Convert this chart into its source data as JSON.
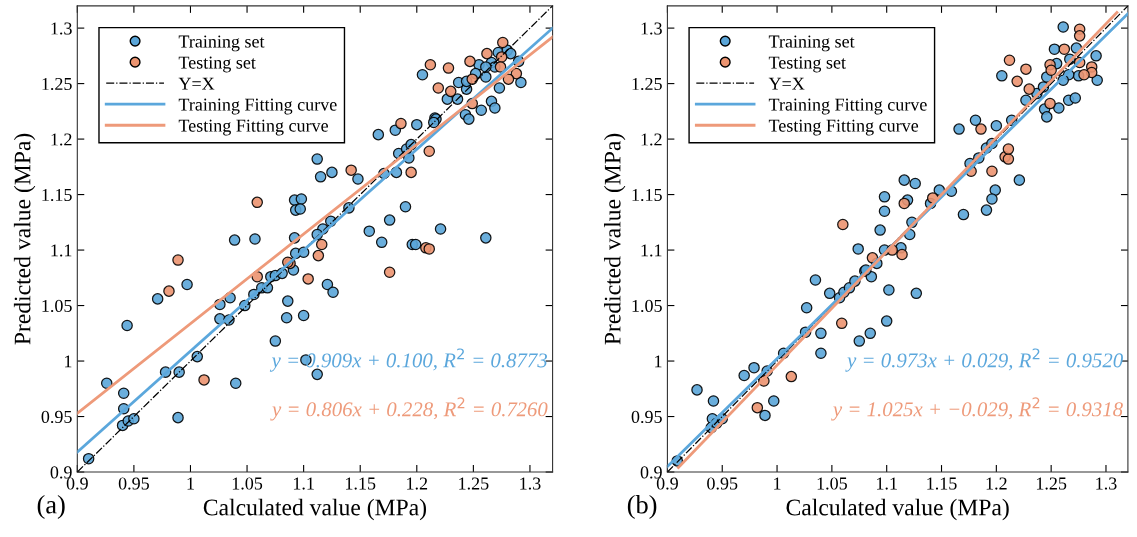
{
  "chart_data": [
    {
      "type": "scatter",
      "xlabel": "Calculated value (MPa)",
      "ylabel": "Predicted value (MPa)",
      "xlim": [
        0.9,
        1.32
      ],
      "ylim": [
        0.9,
        1.32
      ],
      "xticks": [
        0.9,
        0.95,
        1,
        1.05,
        1.1,
        1.15,
        1.2,
        1.25,
        1.3
      ],
      "yticks": [
        0.9,
        0.95,
        1,
        1.05,
        1.1,
        1.15,
        1.2,
        1.25,
        1.3
      ],
      "grid": false,
      "legend": "top left",
      "annotations": [
        "y = 0.909x + 0.100, R$^{2}$ = 0.8773",
        "y = 0.806x + 0.228, R$^{2}$ = 0.7260",
        "(a)"
      ],
      "series": [
        {
          "name": "Training set",
          "marker": "circle",
          "color": "#5aa5d8",
          "x": [
            0.91,
            0.926,
            0.941,
            0.941,
            0.94,
            0.945,
            0.95,
            0.944,
            0.971,
            0.997,
            0.978,
            0.99,
            0.989,
            1.006,
            1.04,
            1.026,
            1.026,
            1.035,
            1.034,
            1.048,
            1.056,
            1.063,
            1.068,
            1.071,
            1.075,
            1.081,
            1.091,
            1.075,
            1.086,
            1.085,
            1.1,
            1.102,
            1.112,
            1.121,
            1.126,
            1.039,
            1.057,
            1.092,
            1.093,
            1.092,
            1.093,
            1.112,
            1.115,
            1.125,
            1.148,
            1.098,
            1.097,
            1.14,
            1.124,
            1.117,
            1.112,
            1.1,
            1.158,
            1.169,
            1.176,
            1.19,
            1.196,
            1.199,
            1.221,
            1.261,
            1.166,
            1.181,
            1.2,
            1.216,
            1.217,
            1.215,
            1.205,
            1.184,
            1.191,
            1.195,
            1.193,
            1.182,
            1.171,
            1.227,
            1.236,
            1.237,
            1.244,
            1.244,
            1.255,
            1.252,
            1.261,
            1.266,
            1.272,
            1.28,
            1.283,
            1.269,
            1.29,
            1.292,
            1.273,
            1.243,
            1.246,
            1.257,
            1.266,
            1.269,
            1.261
          ],
          "values": [
            0.912,
            0.98,
            0.971,
            0.957,
            0.942,
            0.946,
            0.948,
            1.032,
            1.056,
            1.069,
            0.99,
            0.99,
            0.949,
            1.004,
            0.98,
            1.051,
            1.038,
            1.057,
            1.037,
            1.05,
            1.06,
            1.066,
            1.066,
            1.076,
            1.077,
            1.079,
            1.082,
            1.018,
            1.054,
            1.039,
            1.041,
            1.001,
            0.988,
            1.069,
            1.062,
            1.109,
            1.11,
            1.145,
            1.136,
            1.111,
            1.097,
            1.182,
            1.166,
            1.17,
            1.164,
            1.146,
            1.137,
            1.138,
            1.126,
            1.119,
            1.114,
            1.098,
            1.117,
            1.107,
            1.127,
            1.139,
            1.105,
            1.105,
            1.119,
            1.111,
            1.204,
            1.208,
            1.213,
            1.219,
            1.218,
            1.215,
            1.258,
            1.187,
            1.191,
            1.195,
            1.183,
            1.17,
            1.169,
            1.236,
            1.236,
            1.251,
            1.245,
            1.252,
            1.267,
            1.259,
            1.256,
            1.269,
            1.278,
            1.28,
            1.277,
            1.265,
            1.27,
            1.251,
            1.246,
            1.222,
            1.218,
            1.226,
            1.234,
            1.228,
            1.265
          ]
        },
        {
          "name": "Testing set",
          "marker": "circle",
          "color": "#ec9470",
          "x": [
            1.059,
            0.989,
            0.981,
            1.059,
            1.012,
            1.104,
            1.176,
            1.142,
            1.116,
            1.113,
            1.088,
            1.086,
            1.212,
            1.228,
            1.219,
            1.186,
            1.211,
            1.195,
            1.208,
            1.211,
            1.23,
            1.249,
            1.247,
            1.262,
            1.276,
            1.275,
            1.274,
            1.288,
            1.281,
            1.249
          ],
          "values": [
            1.143,
            1.091,
            1.063,
            1.076,
            0.983,
            1.074,
            1.08,
            1.172,
            1.105,
            1.095,
            1.088,
            1.089,
            1.267,
            1.264,
            1.246,
            1.214,
            1.189,
            1.17,
            1.102,
            1.101,
            1.243,
            1.254,
            1.27,
            1.277,
            1.287,
            1.274,
            1.265,
            1.259,
            1.254,
            1.232
          ]
        },
        {
          "name": "Y=X",
          "type": "line",
          "color": "#000000",
          "line_style": "dashed",
          "x": [
            0.9,
            1.32
          ],
          "values": [
            0.9,
            1.32
          ]
        },
        {
          "name": "Training Fitting curve",
          "type": "line",
          "color": "#5ba7dc",
          "line_style": "solid",
          "x": [
            0.9,
            1.32
          ],
          "values": [
            0.918,
            1.3
          ]
        },
        {
          "name": "Testing Fitting curve",
          "type": "line",
          "color": "#ee9a7a",
          "line_style": "solid",
          "x": [
            0.9,
            1.32
          ],
          "values": [
            0.953,
            1.292
          ]
        }
      ]
    },
    {
      "type": "scatter",
      "xlabel": "Calculated value (MPa)",
      "ylabel": "Predicted value (MPa)",
      "xlim": [
        0.9,
        1.32
      ],
      "ylim": [
        0.9,
        1.32
      ],
      "xticks": [
        0.9,
        0.95,
        1,
        1.05,
        1.1,
        1.15,
        1.2,
        1.25,
        1.3
      ],
      "yticks": [
        0.9,
        0.95,
        1,
        1.05,
        1.1,
        1.15,
        1.2,
        1.25,
        1.3
      ],
      "grid": false,
      "legend": "top left",
      "annotations": [
        "y = 0.973x + 0.029, R$^{2}$ = 0.9520",
        "y = 1.025x + −0.029, R$^{2}$ = 0.9318",
        "(b)"
      ],
      "series": [
        {
          "name": "Training set",
          "marker": "circle",
          "color": "#5aa5d8",
          "x": [
            0.909,
            0.927,
            0.942,
            0.941,
            0.94,
            0.945,
            0.95,
            0.97,
            0.979,
            0.989,
            0.991,
            0.997,
            1.006,
            1.027,
            1.026,
            1.035,
            1.04,
            1.04,
            1.048,
            1.057,
            1.061,
            1.066,
            1.071,
            1.08,
            1.075,
            1.085,
            1.086,
            1.1,
            1.102,
            1.127,
            1.074,
            1.094,
            1.098,
            1.098,
            1.091,
            1.098,
            1.113,
            1.116,
            1.126,
            1.119,
            1.123,
            1.121,
            1.081,
            1.14,
            1.148,
            1.159,
            1.17,
            1.176,
            1.184,
            1.191,
            1.196,
            1.221,
            1.199,
            1.196,
            1.191,
            1.166,
            1.181,
            1.2,
            1.214,
            1.205,
            1.227,
            1.237,
            1.243,
            1.246,
            1.253,
            1.261,
            1.255,
            1.267,
            1.275,
            1.266,
            1.261,
            1.291,
            1.292,
            1.273,
            1.244,
            1.246,
            1.257,
            1.266,
            1.272
          ],
          "values": [
            0.91,
            0.974,
            0.964,
            0.948,
            0.94,
            0.944,
            0.948,
            0.987,
            0.994,
            0.951,
            0.991,
            0.964,
            1.007,
            1.048,
            1.026,
            1.073,
            1.025,
            1.007,
            1.061,
            1.057,
            1.062,
            1.066,
            1.072,
            1.081,
            1.018,
            1.025,
            1.076,
            1.036,
            1.064,
            1.061,
            1.101,
            1.118,
            1.148,
            1.135,
            1.088,
            1.1,
            1.102,
            1.163,
            1.16,
            1.145,
            1.125,
            1.114,
            1.082,
            1.142,
            1.154,
            1.153,
            1.132,
            1.178,
            1.183,
            1.192,
            1.196,
            1.163,
            1.154,
            1.146,
            1.136,
            1.209,
            1.217,
            1.212,
            1.217,
            1.257,
            1.235,
            1.241,
            1.247,
            1.256,
            1.281,
            1.301,
            1.268,
            1.272,
            1.257,
            1.258,
            1.253,
            1.275,
            1.253,
            1.282,
            1.227,
            1.22,
            1.228,
            1.235,
            1.237
          ]
        },
        {
          "name": "Testing set",
          "marker": "circle",
          "color": "#ec9470",
          "x": [
            0.982,
            0.988,
            1.013,
            1.059,
            1.06,
            1.087,
            1.105,
            1.114,
            1.116,
            1.142,
            1.177,
            1.196,
            1.208,
            1.211,
            1.211,
            1.186,
            1.212,
            1.227,
            1.219,
            1.23,
            1.249,
            1.262,
            1.276,
            1.276,
            1.276,
            1.287,
            1.287,
            1.28,
            1.25,
            1.249
          ],
          "values": [
            0.958,
            0.982,
            0.986,
            1.034,
            1.123,
            1.093,
            1.1,
            1.096,
            1.142,
            1.147,
            1.171,
            1.171,
            1.184,
            1.182,
            1.191,
            1.209,
            1.271,
            1.263,
            1.252,
            1.245,
            1.267,
            1.281,
            1.299,
            1.293,
            1.269,
            1.265,
            1.26,
            1.258,
            1.262,
            1.232
          ]
        },
        {
          "name": "Y=X",
          "type": "line",
          "color": "#000000",
          "line_style": "dashed",
          "x": [
            0.9,
            1.32
          ],
          "values": [
            0.9,
            1.32
          ]
        },
        {
          "name": "Training Fitting curve",
          "type": "line",
          "color": "#5ba7dc",
          "line_style": "solid",
          "x": [
            0.9,
            1.32
          ],
          "values": [
            0.905,
            1.313
          ]
        },
        {
          "name": "Testing Fitting curve",
          "type": "line",
          "color": "#ee9a7a",
          "line_style": "solid",
          "x": [
            0.91,
            1.31
          ],
          "values": [
            0.904,
            1.314
          ]
        }
      ]
    }
  ]
}
